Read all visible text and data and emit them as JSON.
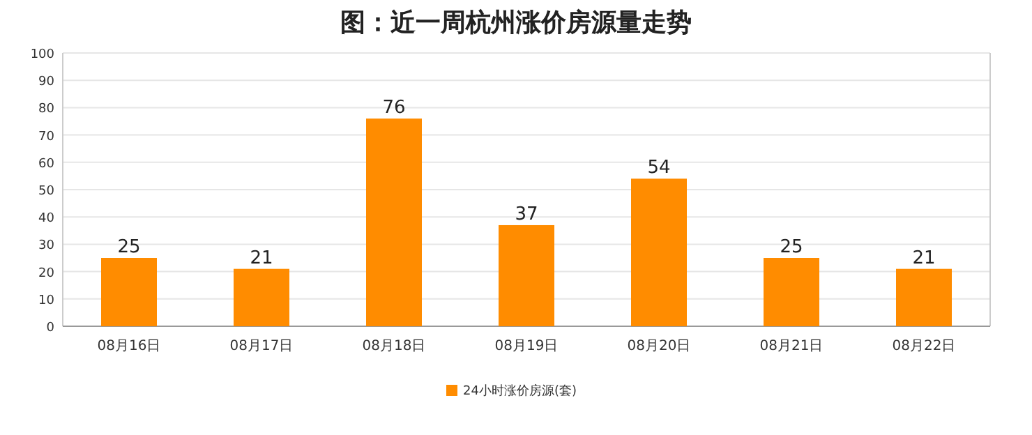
{
  "chart_data": {
    "type": "bar",
    "title": "图：近一周杭州涨价房源量走势",
    "categories": [
      "08月16日",
      "08月17日",
      "08月18日",
      "08月19日",
      "08月20日",
      "08月21日",
      "08月22日"
    ],
    "series": [
      {
        "name": "24小时涨价房源(套)",
        "color": "#ff8c00",
        "values": [
          25,
          21,
          76,
          37,
          54,
          25,
          21
        ]
      }
    ],
    "ylim": [
      0,
      100
    ],
    "yticks": [
      0,
      10,
      20,
      30,
      40,
      50,
      60,
      70,
      80,
      90,
      100
    ],
    "grid": "y",
    "data_labels": true,
    "legend": "bottom"
  }
}
